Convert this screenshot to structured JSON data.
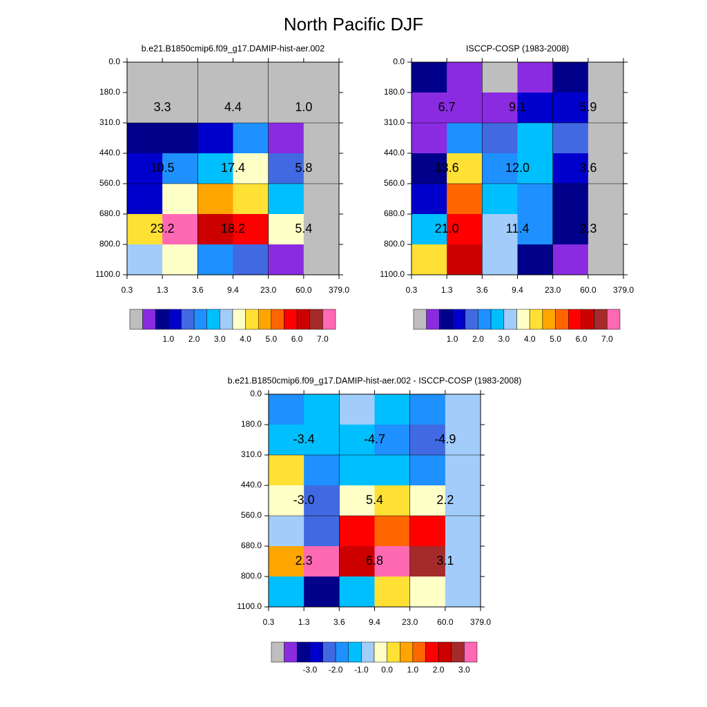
{
  "title": "North Pacific DJF",
  "colors": {
    "missing": "#bebebe",
    "palette": [
      "#8a2be2",
      "#00008b",
      "#0000cd",
      "#4169e1",
      "#1e90ff",
      "#00bfff",
      "#a2cdfa",
      "#ffffc8",
      "#ffe135",
      "#ffa500",
      "#ff6600",
      "#ff0000",
      "#cd0000",
      "#a52a2a",
      "#ff69b4"
    ],
    "grid_line": "#000000"
  },
  "chart_data": [
    {
      "type": "heatmap",
      "title": "b.e21.B1850cmip6.f09_g17.DAMIP-hist-aer.002",
      "x_ticks": [
        "0.3",
        "1.3",
        "3.6",
        "9.4",
        "23.0",
        "60.0",
        "379.0"
      ],
      "y_ticks": [
        "0.0",
        "180.0",
        "310.0",
        "440.0",
        "560.0",
        "680.0",
        "800.0",
        "1100.0"
      ],
      "cells_color_index": [
        [
          -1,
          -1,
          -1,
          -1,
          -1,
          -1
        ],
        [
          -1,
          -1,
          -1,
          -1,
          -1,
          -1
        ],
        [
          1,
          1,
          2,
          4,
          0,
          -1
        ],
        [
          2,
          4,
          5,
          7,
          3,
          -1
        ],
        [
          2,
          7,
          9,
          8,
          5,
          -1
        ],
        [
          8,
          14,
          12,
          11,
          7,
          -1
        ],
        [
          6,
          7,
          4,
          3,
          0,
          -1
        ]
      ],
      "box_values": [
        [
          "3.3",
          "4.4",
          "1.0"
        ],
        [
          "10.5",
          "17.4",
          "5.8"
        ],
        [
          "23.2",
          "18.2",
          "5.4"
        ]
      ],
      "colorbar_labels": [
        "1.0",
        "2.0",
        "3.0",
        "4.0",
        "5.0",
        "6.0",
        "7.0"
      ]
    },
    {
      "type": "heatmap",
      "title": "ISCCP-COSP (1983-2008)",
      "x_ticks": [
        "0.3",
        "1.3",
        "3.6",
        "9.4",
        "23.0",
        "60.0",
        "379.0"
      ],
      "y_ticks": [
        "0.0",
        "180.0",
        "310.0",
        "440.0",
        "560.0",
        "680.0",
        "800.0",
        "1100.0"
      ],
      "cells_color_index": [
        [
          1,
          0,
          -1,
          0,
          1,
          -1
        ],
        [
          0,
          0,
          0,
          2,
          2,
          -1
        ],
        [
          0,
          4,
          3,
          5,
          3,
          -1
        ],
        [
          1,
          8,
          4,
          5,
          2,
          -1
        ],
        [
          2,
          10,
          5,
          4,
          1,
          -1
        ],
        [
          5,
          11,
          6,
          4,
          1,
          -1
        ],
        [
          8,
          12,
          6,
          1,
          0,
          -1
        ]
      ],
      "box_values": [
        [
          "6.7",
          "9.1",
          "5.9"
        ],
        [
          "13.6",
          "12.0",
          "3.6"
        ],
        [
          "21.0",
          "11.4",
          "2.3"
        ]
      ],
      "colorbar_labels": [
        "1.0",
        "2.0",
        "3.0",
        "4.0",
        "5.0",
        "6.0",
        "7.0"
      ]
    },
    {
      "type": "heatmap",
      "title": "b.e21.B1850cmip6.f09_g17.DAMIP-hist-aer.002 - ISCCP-COSP (1983-2008)",
      "x_ticks": [
        "0.3",
        "1.3",
        "3.6",
        "9.4",
        "23.0",
        "60.0",
        "379.0"
      ],
      "y_ticks": [
        "0.0",
        "180.0",
        "310.0",
        "440.0",
        "560.0",
        "680.0",
        "800.0",
        "1100.0"
      ],
      "cells_color_index": [
        [
          4,
          5,
          6,
          5,
          4,
          6
        ],
        [
          5,
          5,
          5,
          4,
          3,
          6
        ],
        [
          8,
          4,
          5,
          5,
          4,
          6
        ],
        [
          7,
          3,
          7,
          8,
          7,
          6
        ],
        [
          6,
          3,
          11,
          10,
          11,
          6
        ],
        [
          9,
          14,
          12,
          14,
          13,
          6
        ],
        [
          5,
          1,
          5,
          8,
          7,
          6
        ]
      ],
      "box_values": [
        [
          "-3.4",
          "-4.7",
          "-4.9"
        ],
        [
          "-3.0",
          "5.4",
          "2.2"
        ],
        [
          "2.3",
          "6.8",
          "3.1"
        ]
      ],
      "colorbar_labels": [
        "-3.0",
        "-2.0",
        "-1.0",
        "0.0",
        "1.0",
        "2.0",
        "3.0"
      ]
    }
  ]
}
